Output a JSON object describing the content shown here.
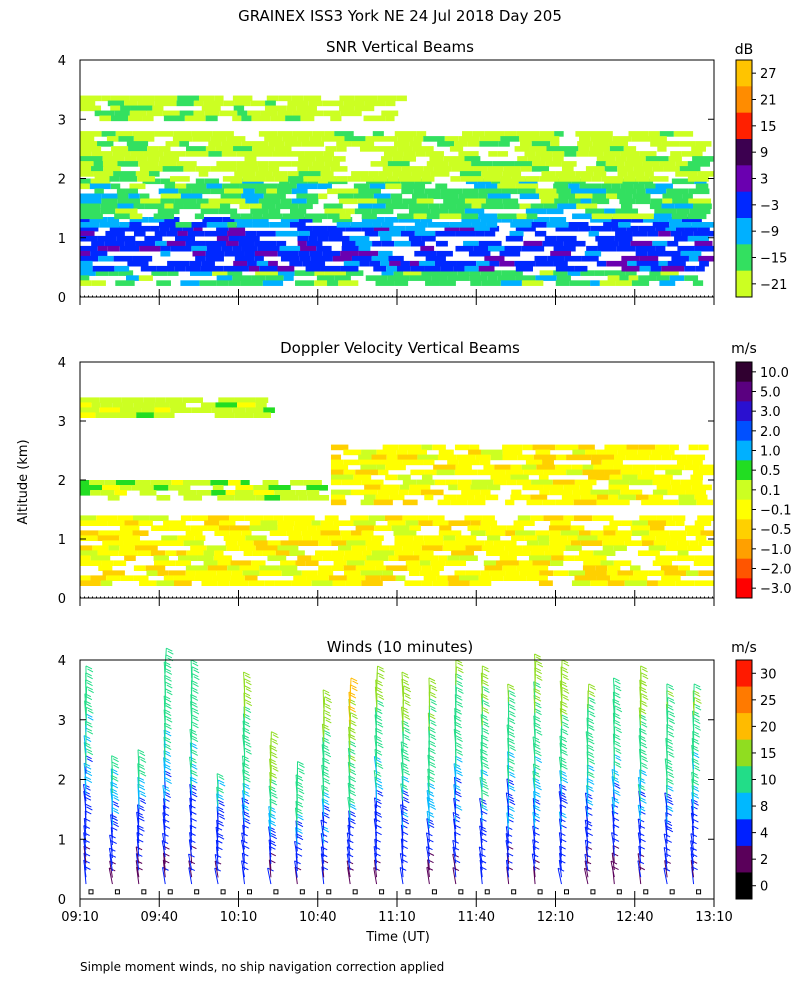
{
  "title": "GRAINEX ISS3 York NE  24 Jul 2018 Day 205",
  "ylabel": "Altitude (km)",
  "xlabel": "Time (UT)",
  "footer": "Simple moment winds, no ship navigation correction applied",
  "chart_data": [
    {
      "type": "heatmap",
      "title": "SNR Vertical Beams",
      "yticks": [
        "0",
        "1",
        "2",
        "3",
        "4"
      ],
      "ylim": [
        0,
        4
      ],
      "colorbar": {
        "unit": "dB",
        "labels": [
          "27",
          "21",
          "15",
          "9",
          "3",
          "−3",
          "−9",
          "−15",
          "−21"
        ],
        "colors": [
          "#ffc400",
          "#ff8c00",
          "#ff2000",
          "#3c0050",
          "#6a00b0",
          "#0028ff",
          "#00b0ff",
          "#33e060",
          "#ccff22"
        ]
      },
      "layers": [
        {
          "alt_range": [
            0.25,
            0.45
          ],
          "time_range": [
            "09:10",
            "13:05"
          ],
          "level_db": -15
        },
        {
          "alt_range": [
            0.45,
            1.2
          ],
          "time_range": [
            "09:10",
            "13:05"
          ],
          "level_db": -3
        },
        {
          "alt_range": [
            1.2,
            1.35
          ],
          "time_range": [
            "09:10",
            "13:05"
          ],
          "level_db": -9
        },
        {
          "alt_range": [
            1.35,
            2.0
          ],
          "time_range": [
            "09:10",
            "13:05"
          ],
          "level_db": -15
        },
        {
          "alt_range": [
            2.0,
            2.8
          ],
          "time_range": [
            "09:10",
            "13:05"
          ],
          "level_db": -21
        },
        {
          "alt_range": [
            3.0,
            3.4
          ],
          "time_range": [
            "09:10",
            "11:10"
          ],
          "level_db": -21
        }
      ]
    },
    {
      "type": "heatmap",
      "title": "Doppler Velocity Vertical Beams",
      "yticks": [
        "0",
        "1",
        "2",
        "3",
        "4"
      ],
      "ylim": [
        0,
        4
      ],
      "colorbar": {
        "unit": "m/s",
        "labels": [
          "10.0",
          "5.0",
          "3.0",
          "2.0",
          "1.0",
          "0.5",
          "0.1",
          "−0.1",
          "−0.5",
          "−1.0",
          "−2.0",
          "−3.0"
        ],
        "colors": [
          "#300030",
          "#5a0080",
          "#2a10d0",
          "#0050ff",
          "#00b0ff",
          "#22dd22",
          "#ccff22",
          "#ffff00",
          "#ffd000",
          "#ffa000",
          "#ff5500",
          "#ff0000"
        ]
      },
      "layers": [
        {
          "alt_range": [
            0.25,
            1.4
          ],
          "time_range": [
            "09:10",
            "13:05"
          ],
          "level_ms": -0.3
        },
        {
          "alt_range": [
            1.6,
            2.6
          ],
          "time_range": [
            "10:45",
            "13:05"
          ],
          "level_ms": -0.3
        },
        {
          "alt_range": [
            1.7,
            2.0
          ],
          "time_range": [
            "09:10",
            "10:40"
          ],
          "level_ms": 0.0
        },
        {
          "alt_range": [
            3.1,
            3.4
          ],
          "time_range": [
            "09:10",
            "10:20"
          ],
          "level_ms": 0.0
        }
      ]
    },
    {
      "type": "scatter",
      "title": "Winds (10 minutes)",
      "yticks": [
        "0",
        "1",
        "2",
        "3",
        "4"
      ],
      "ylim": [
        0,
        4
      ],
      "xticks": [
        "09:10",
        "09:40",
        "10:10",
        "10:40",
        "11:10",
        "11:40",
        "12:10",
        "12:40",
        "13:10"
      ],
      "xlim": [
        "09:10",
        "13:10"
      ],
      "interval_minutes": 10,
      "colorbar": {
        "unit": "m/s",
        "labels": [
          "30",
          "25",
          "20",
          "15",
          "10",
          "8",
          "4",
          "2",
          "0"
        ],
        "colors": [
          "#ff1a00",
          "#ff7a00",
          "#ffbb00",
          "#90dd20",
          "#22dd88",
          "#00b8ff",
          "#0020ff",
          "#5a005a",
          "#000000"
        ]
      },
      "profiles": [
        {
          "time": "09:10",
          "max_alt_km": 3.6,
          "top_speed_ms": 10
        },
        {
          "time": "09:20",
          "max_alt_km": 2.1,
          "top_speed_ms": 8
        },
        {
          "time": "09:30",
          "max_alt_km": 2.2,
          "top_speed_ms": 8
        },
        {
          "time": "09:40",
          "max_alt_km": 3.9,
          "top_speed_ms": 12
        },
        {
          "time": "09:50",
          "max_alt_km": 3.7,
          "top_speed_ms": 12
        },
        {
          "time": "10:00",
          "max_alt_km": 1.8,
          "top_speed_ms": 8
        },
        {
          "time": "10:10",
          "max_alt_km": 3.5,
          "top_speed_ms": 14
        },
        {
          "time": "10:20",
          "max_alt_km": 2.5,
          "top_speed_ms": 15
        },
        {
          "time": "10:30",
          "max_alt_km": 2.0,
          "top_speed_ms": 10
        },
        {
          "time": "10:40",
          "max_alt_km": 3.2,
          "top_speed_ms": 15
        },
        {
          "time": "10:50",
          "max_alt_km": 3.4,
          "top_speed_ms": 18
        },
        {
          "time": "11:00",
          "max_alt_km": 3.6,
          "top_speed_ms": 14
        },
        {
          "time": "11:10",
          "max_alt_km": 3.5,
          "top_speed_ms": 14
        },
        {
          "time": "11:20",
          "max_alt_km": 3.4,
          "top_speed_ms": 14
        },
        {
          "time": "11:30",
          "max_alt_km": 3.7,
          "top_speed_ms": 12
        },
        {
          "time": "11:40",
          "max_alt_km": 3.6,
          "top_speed_ms": 14
        },
        {
          "time": "11:50",
          "max_alt_km": 3.3,
          "top_speed_ms": 12
        },
        {
          "time": "12:00",
          "max_alt_km": 3.8,
          "top_speed_ms": 14
        },
        {
          "time": "12:10",
          "max_alt_km": 3.7,
          "top_speed_ms": 14
        },
        {
          "time": "12:20",
          "max_alt_km": 3.3,
          "top_speed_ms": 12
        },
        {
          "time": "12:30",
          "max_alt_km": 3.4,
          "top_speed_ms": 12
        },
        {
          "time": "12:40",
          "max_alt_km": 3.6,
          "top_speed_ms": 14
        },
        {
          "time": "12:50",
          "max_alt_km": 3.3,
          "top_speed_ms": 12
        },
        {
          "time": "13:00",
          "max_alt_km": 3.3,
          "top_speed_ms": 12
        }
      ]
    }
  ]
}
